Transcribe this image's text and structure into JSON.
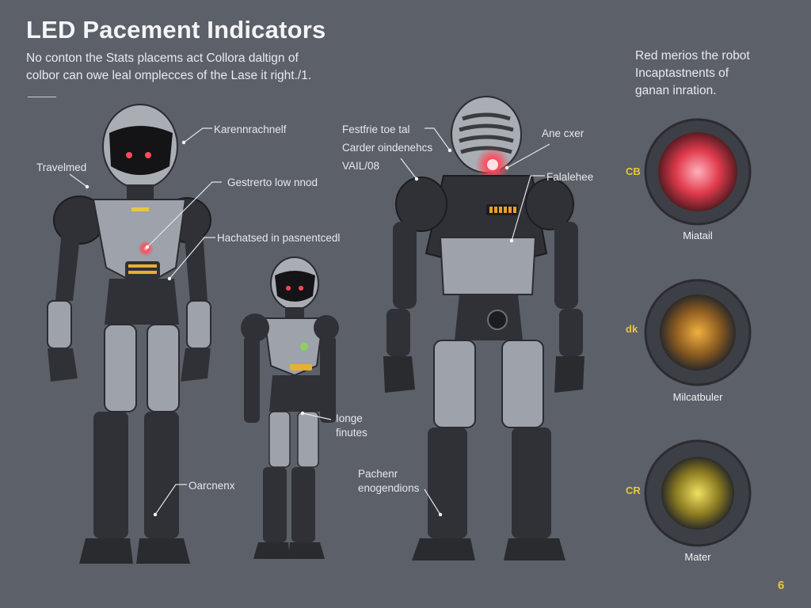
{
  "header": {
    "title": "LED Pacement Indicators",
    "intro_line1": "No conton the Stats placems act Collora daltign of",
    "intro_line2": "colbor can owe leal omplecces of the Lase it right./1."
  },
  "side_note": {
    "line1": "Red merios the robot",
    "line2": "Incaptastnents of",
    "line3": "ganan inration."
  },
  "callouts": {
    "travelmed": "Travelmed",
    "karenn": "Karennrachnelf",
    "gestrerto": "Gestrerto low nnod",
    "hachatsed": "Hachatsed in pasnentcedl",
    "oarcnenx": "Oarcnenx",
    "festfrie": "Festfrie toe tal",
    "carder": "Carder oindenehcs",
    "vil": "VAIL/08",
    "ane": "Ane cxer",
    "falalehee": "Falalehee",
    "ionge1": "Ionge",
    "ionge2": "finutes",
    "pachenr1": "Pachenr",
    "pachenr2": "enogendions"
  },
  "swatches": [
    {
      "code": "CB",
      "label": "Miatail",
      "color": "#ff5060"
    },
    {
      "code": "dk",
      "label": "Milcatbuler",
      "color": "#e09a30"
    },
    {
      "code": "CR",
      "label": "Mater",
      "color": "#e8d030"
    }
  ],
  "colors": {
    "background": "#5c6068",
    "armor_dark": "#2f3136",
    "armor_light": "#9ea2aa",
    "led_red": "#ff4a5a",
    "led_amber": "#e8b030",
    "led_green": "#8cd060",
    "accent_yellow": "#e8c740"
  },
  "page_number": "6"
}
